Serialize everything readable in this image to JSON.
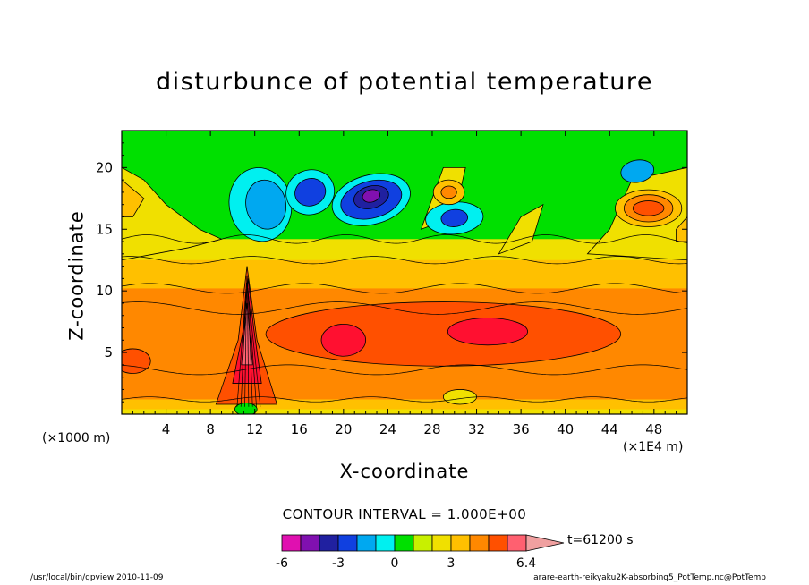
{
  "chart_data": {
    "type": "heatmap",
    "title": "disturbunce of potential temperature",
    "xlabel": "X-coordinate",
    "ylabel": "Z-coordinate",
    "x_unit": "(×1000 m)",
    "x_unit_right": "(×1E4 m)",
    "x_ticks": [
      4,
      8,
      12,
      16,
      20,
      24,
      28,
      32,
      36,
      40,
      44,
      48
    ],
    "y_ticks": [
      5,
      10,
      15,
      20
    ],
    "xlim": [
      0,
      51
    ],
    "ylim": [
      0,
      23
    ],
    "contour_interval_text": "CONTOUR INTERVAL = 1.000E+00",
    "contour_interval": 1.0,
    "colorbar_levels": [
      -6,
      -5,
      -4,
      -3,
      -2,
      -1,
      0,
      1,
      2,
      3,
      4,
      5,
      6,
      6.4
    ],
    "colorbar_labels": [
      "-6",
      "-3",
      "0",
      "3",
      "6.4"
    ],
    "time_label": "t=61200 s",
    "background_value_band": [
      0,
      1
    ],
    "features": [
      {
        "kind": "upper-wave-region",
        "z_range": [
          13,
          23
        ],
        "values": [
          -6,
          2
        ]
      },
      {
        "kind": "min-cell",
        "x": 22.5,
        "z": 17.5,
        "value": -5.5
      },
      {
        "kind": "max-cell",
        "x": 33,
        "z": 6.7,
        "value": 5.5
      },
      {
        "kind": "max-cell",
        "x": 20,
        "z": 6.0,
        "value": 5.2
      },
      {
        "kind": "max-cell",
        "x": 47.5,
        "z": 16.7,
        "value": 4.5
      },
      {
        "kind": "plume",
        "x": 11.5,
        "z_range": [
          0,
          12
        ],
        "values": [
          3,
          6.4
        ]
      },
      {
        "kind": "warm-layer",
        "z_range": [
          1,
          10
        ],
        "values": [
          3,
          5
        ]
      }
    ]
  },
  "footer": {
    "left": "/usr/local/bin/gpview   2010-11-09",
    "right": "arare-earth-reikyaku2K-absorbing5_PotTemp.nc@PotTemp"
  },
  "colors": {
    "m6": "#e010b0",
    "m5": "#8010b0",
    "m4": "#2020a0",
    "m3": "#1040e0",
    "m2": "#00a8f0",
    "m1": "#00f0f0",
    "p0": "#00e000",
    "p1": "#c8f000",
    "p2": "#f0e000",
    "p3": "#ffc000",
    "p4": "#ff8800",
    "p5": "#ff5000",
    "p6": "#ff1030",
    "p64": "#ff6070",
    "over": "#f0a0a0"
  }
}
